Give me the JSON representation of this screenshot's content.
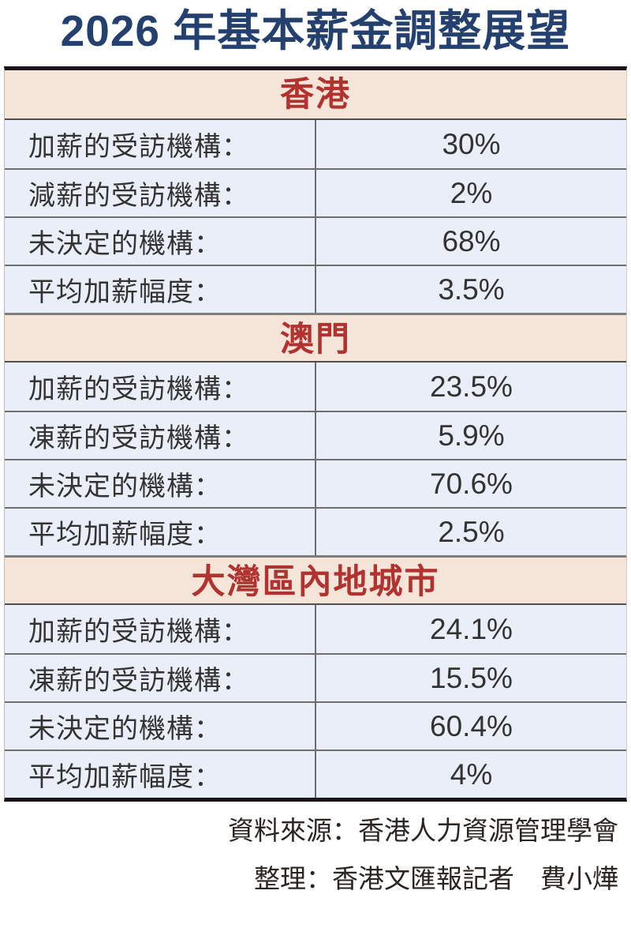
{
  "title": "2026 年基本薪金調整展望",
  "colors": {
    "title-blue": "#24406f",
    "header-red": "#b23230",
    "header-bg": "#f5e4d8",
    "row-bg": "#e9eef8",
    "line-gray": "#6e6e6e",
    "heavy-black": "#19131a",
    "text-dark": "#333333",
    "footer-ink": "#2b2522"
  },
  "sections": [
    {
      "name": "香港",
      "rows": [
        {
          "label": "加薪的受訪機構：",
          "value": "30%"
        },
        {
          "label": "減薪的受訪機構：",
          "value": "2%"
        },
        {
          "label": "未決定的機構：",
          "value": "68%"
        },
        {
          "label": "平均加薪幅度：",
          "value": "3.5%"
        }
      ]
    },
    {
      "name": "澳門",
      "rows": [
        {
          "label": "加薪的受訪機構：",
          "value": "23.5%"
        },
        {
          "label": "凍薪的受訪機構：",
          "value": "5.9%"
        },
        {
          "label": "未決定的機構：",
          "value": "70.6%"
        },
        {
          "label": "平均加薪幅度：",
          "value": "2.5%"
        }
      ]
    },
    {
      "name": "大灣區內地城市",
      "rows": [
        {
          "label": "加薪的受訪機構：",
          "value": "24.1%"
        },
        {
          "label": "凍薪的受訪機構：",
          "value": "15.5%"
        },
        {
          "label": "未決定的機構：",
          "value": "60.4%"
        },
        {
          "label": "平均加薪幅度：",
          "value": "4%"
        }
      ]
    }
  ],
  "footer": {
    "source": "資料來源：香港人力資源管理學會",
    "credit": "整理：香港文匯報記者　費小燁"
  },
  "chart_data": {
    "type": "table",
    "title": "2026 年基本薪金調整展望",
    "row_headers": [
      "加薪的受訪機構",
      "減薪/凍薪的受訪機構",
      "未決定的機構",
      "平均加薪幅度"
    ],
    "sections": [
      {
        "region": "香港",
        "rows": [
          [
            "加薪的受訪機構",
            "30%"
          ],
          [
            "減薪的受訪機構",
            "2%"
          ],
          [
            "未決定的機構",
            "68%"
          ],
          [
            "平均加薪幅度",
            "3.5%"
          ]
        ]
      },
      {
        "region": "澳門",
        "rows": [
          [
            "加薪的受訪機構",
            "23.5%"
          ],
          [
            "凍薪的受訪機構",
            "5.9%"
          ],
          [
            "未決定的機構",
            "70.6%"
          ],
          [
            "平均加薪幅度",
            "2.5%"
          ]
        ]
      },
      {
        "region": "大灣區內地城市",
        "rows": [
          [
            "加薪的受訪機構",
            "24.1%"
          ],
          [
            "凍薪的受訪機構",
            "15.5%"
          ],
          [
            "未決定的機構",
            "60.4%"
          ],
          [
            "平均加薪幅度",
            "4%"
          ]
        ]
      }
    ],
    "source": "香港人力資源管理學會",
    "compiled_by": "香港文匯報記者 費小燁"
  }
}
